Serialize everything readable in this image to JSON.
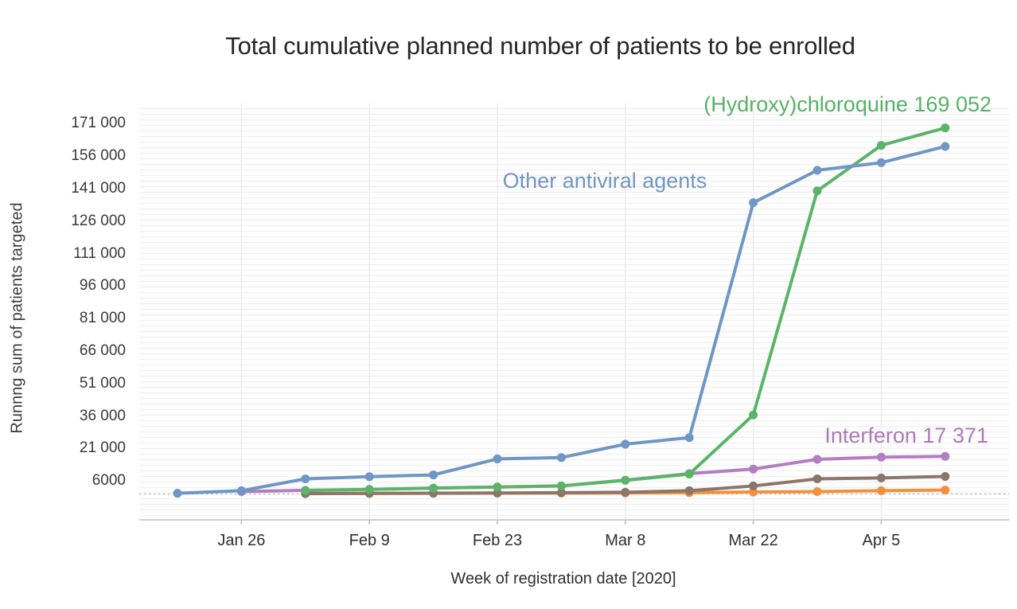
{
  "title": "Total cumulative planned number of patients to be enrolled",
  "colors": {
    "blue": "#6f96c5",
    "green": "#5bb568",
    "purple": "#b27ec0",
    "brown": "#8d7569",
    "orange": "#f2913d",
    "axis_line": "#cfcfcf",
    "gridline": "#ececec",
    "reference_dashed": "#c2c2c2",
    "green_label_text": "#56b266",
    "blue_label_text": "#7296c3",
    "purple_label_text": "#b177bb"
  },
  "chart_data": {
    "type": "line",
    "title": "Total cumulative planned number of patients to be enrolled",
    "xlabel": "Week of registration date [2020]",
    "ylabel": "Runnng sum of patients targeted",
    "x_weeks": [
      "Jan 19",
      "Jan 26",
      "Feb 2",
      "Feb 9",
      "Feb 16",
      "Feb 23",
      "Mar 1",
      "Mar 8",
      "Mar 15",
      "Mar 22",
      "Mar 29",
      "Apr 5",
      "Apr 12"
    ],
    "x_ticks": [
      {
        "i": 1,
        "label": "Jan 26"
      },
      {
        "i": 3,
        "label": "Feb 9"
      },
      {
        "i": 5,
        "label": "Feb 23"
      },
      {
        "i": 7,
        "label": "Mar 8"
      },
      {
        "i": 9,
        "label": "Mar 22"
      },
      {
        "i": 11,
        "label": "Apr 5"
      }
    ],
    "y_ticks": [
      {
        "value": 171000,
        "label": "171 000"
      },
      {
        "value": 156000,
        "label": "156 000"
      },
      {
        "value": 141000,
        "label": "141 000"
      },
      {
        "value": 126000,
        "label": "126 000"
      },
      {
        "value": 111000,
        "label": "111 000"
      },
      {
        "value": 96000,
        "label": "96 000"
      },
      {
        "value": 81000,
        "label": "81 000"
      },
      {
        "value": 66000,
        "label": "66 000"
      },
      {
        "value": 51000,
        "label": "51 000"
      },
      {
        "value": 36000,
        "label": "36 000"
      },
      {
        "value": 21000,
        "label": "21 000"
      },
      {
        "value": 6000,
        "label": "6000"
      }
    ],
    "ylim": [
      0,
      178000
    ],
    "grid": "fine horizontal pinstripes, faint vertical gridlines at labeled ticks, dashed baseline reference",
    "legend_position": "inline text annotations near line ends",
    "series": [
      {
        "key": "purple",
        "name": "Interferon",
        "final_value": 17371,
        "values": [
          null,
          1100,
          1700,
          2100,
          2700,
          3200,
          3700,
          6400,
          9400,
          11500,
          16000,
          17000,
          17371
        ]
      },
      {
        "key": "orange",
        "name": "",
        "final_value": 1800,
        "values": [
          null,
          null,
          150,
          250,
          300,
          350,
          400,
          450,
          600,
          900,
          1100,
          1500,
          1800
        ]
      },
      {
        "key": "brown",
        "name": "",
        "final_value": 8100,
        "values": [
          null,
          null,
          200,
          300,
          350,
          450,
          600,
          800,
          1500,
          3700,
          7000,
          7400,
          8100
        ]
      },
      {
        "key": "green",
        "name": "(Hydroxy)chloroquine",
        "final_value": 169052,
        "values": [
          null,
          null,
          1600,
          2100,
          2700,
          3200,
          3700,
          6300,
          9200,
          36500,
          140000,
          161000,
          169052
        ]
      },
      {
        "key": "blue",
        "name": "Other antiviral agents",
        "final_value": 160500,
        "values": [
          300,
          1500,
          7000,
          8000,
          8800,
          16200,
          16800,
          23000,
          26000,
          134500,
          149500,
          153000,
          160500
        ]
      }
    ],
    "annotations": {
      "hydroxychloroquine": "(Hydroxy)chloroquine 169 052",
      "other_antiviral": "Other antiviral agents",
      "interferon": "Interferon 17 371"
    }
  }
}
